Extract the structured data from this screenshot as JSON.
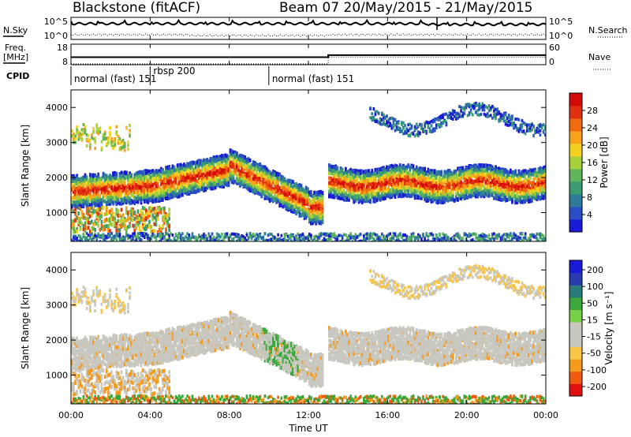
{
  "header": {
    "station": "Blackstone (fitACF)",
    "beam_dates": "Beam 07  20/May/2015 - 21/May/2015"
  },
  "panel_labels": {
    "nsky": "N.Sky",
    "nsearch": "N.Search",
    "freq": "Freq.",
    "freq_unit": "[MHz]",
    "nave": "Nave",
    "cpid": "CPID"
  },
  "colors": {
    "power_scale": [
      "#1a1ad6",
      "#2a4fc4",
      "#2f7a9a",
      "#3a9a72",
      "#5fb55a",
      "#a6cf3c",
      "#f2d21e",
      "#f7a21a",
      "#f06a12",
      "#e03010",
      "#d40a0a"
    ],
    "velocity_scale": [
      "#e01010",
      "#f05a10",
      "#f59a1a",
      "#f7c64a",
      "#c8c8c0",
      "#c8c8c0",
      "#78d048",
      "#3aa83a",
      "#2a7a7a",
      "#2a3ab0",
      "#1a1ad6"
    ],
    "ground_scatter": "#c0c0c0"
  },
  "chart_data": [
    {
      "type": "line",
      "name": "N.Sky / N.Search",
      "yticks_left": [
        "10^5",
        "10^0"
      ],
      "yticks_right": [
        "10^5",
        "10^0"
      ]
    },
    {
      "type": "line",
      "name": "Freq / Nave",
      "yticks_left": [
        "18",
        "8"
      ],
      "yticks_right": [
        "60",
        "0"
      ],
      "freq_mhz": [
        [
          0,
          10.5
        ],
        [
          13.0,
          10.5
        ],
        [
          13.0,
          11.5
        ],
        [
          24,
          11.5
        ]
      ],
      "nave": [
        [
          0,
          0
        ],
        [
          13.0,
          0
        ],
        [
          13.0,
          20
        ],
        [
          24,
          20
        ]
      ]
    },
    {
      "type": "table",
      "name": "CPID",
      "segments": [
        {
          "label": "normal (fast) 151",
          "start_h": 0.0,
          "end_h": 4.0
        },
        {
          "label": "rbsp 200",
          "start_h": 4.0,
          "end_h": 10.0
        },
        {
          "label": "normal (fast) 151",
          "start_h": 10.0,
          "end_h": 24.0
        }
      ]
    },
    {
      "type": "heatmap",
      "ylabel": "Slant Range [km]",
      "yticks": [
        1000,
        2000,
        3000,
        4000
      ],
      "ylim": [
        180,
        4500
      ],
      "colorbar_label": "Power [dB]",
      "colorbar_ticks": [
        4,
        8,
        12,
        16,
        20,
        24,
        28
      ],
      "colorbar_range": [
        0,
        32
      ]
    },
    {
      "type": "heatmap",
      "ylabel": "Slant Range [km]",
      "yticks": [
        1000,
        2000,
        3000,
        4000
      ],
      "ylim": [
        180,
        4500
      ],
      "colorbar_label": "Velocity [m s⁻¹]",
      "colorbar_ticks": [
        200,
        100,
        50,
        15,
        -15,
        -50,
        -100,
        -200
      ]
    }
  ],
  "xaxis": {
    "label": "Time UT",
    "ticks": [
      "00:00",
      "04:00",
      "08:00",
      "12:00",
      "16:00",
      "20:00",
      "00:00"
    ]
  }
}
